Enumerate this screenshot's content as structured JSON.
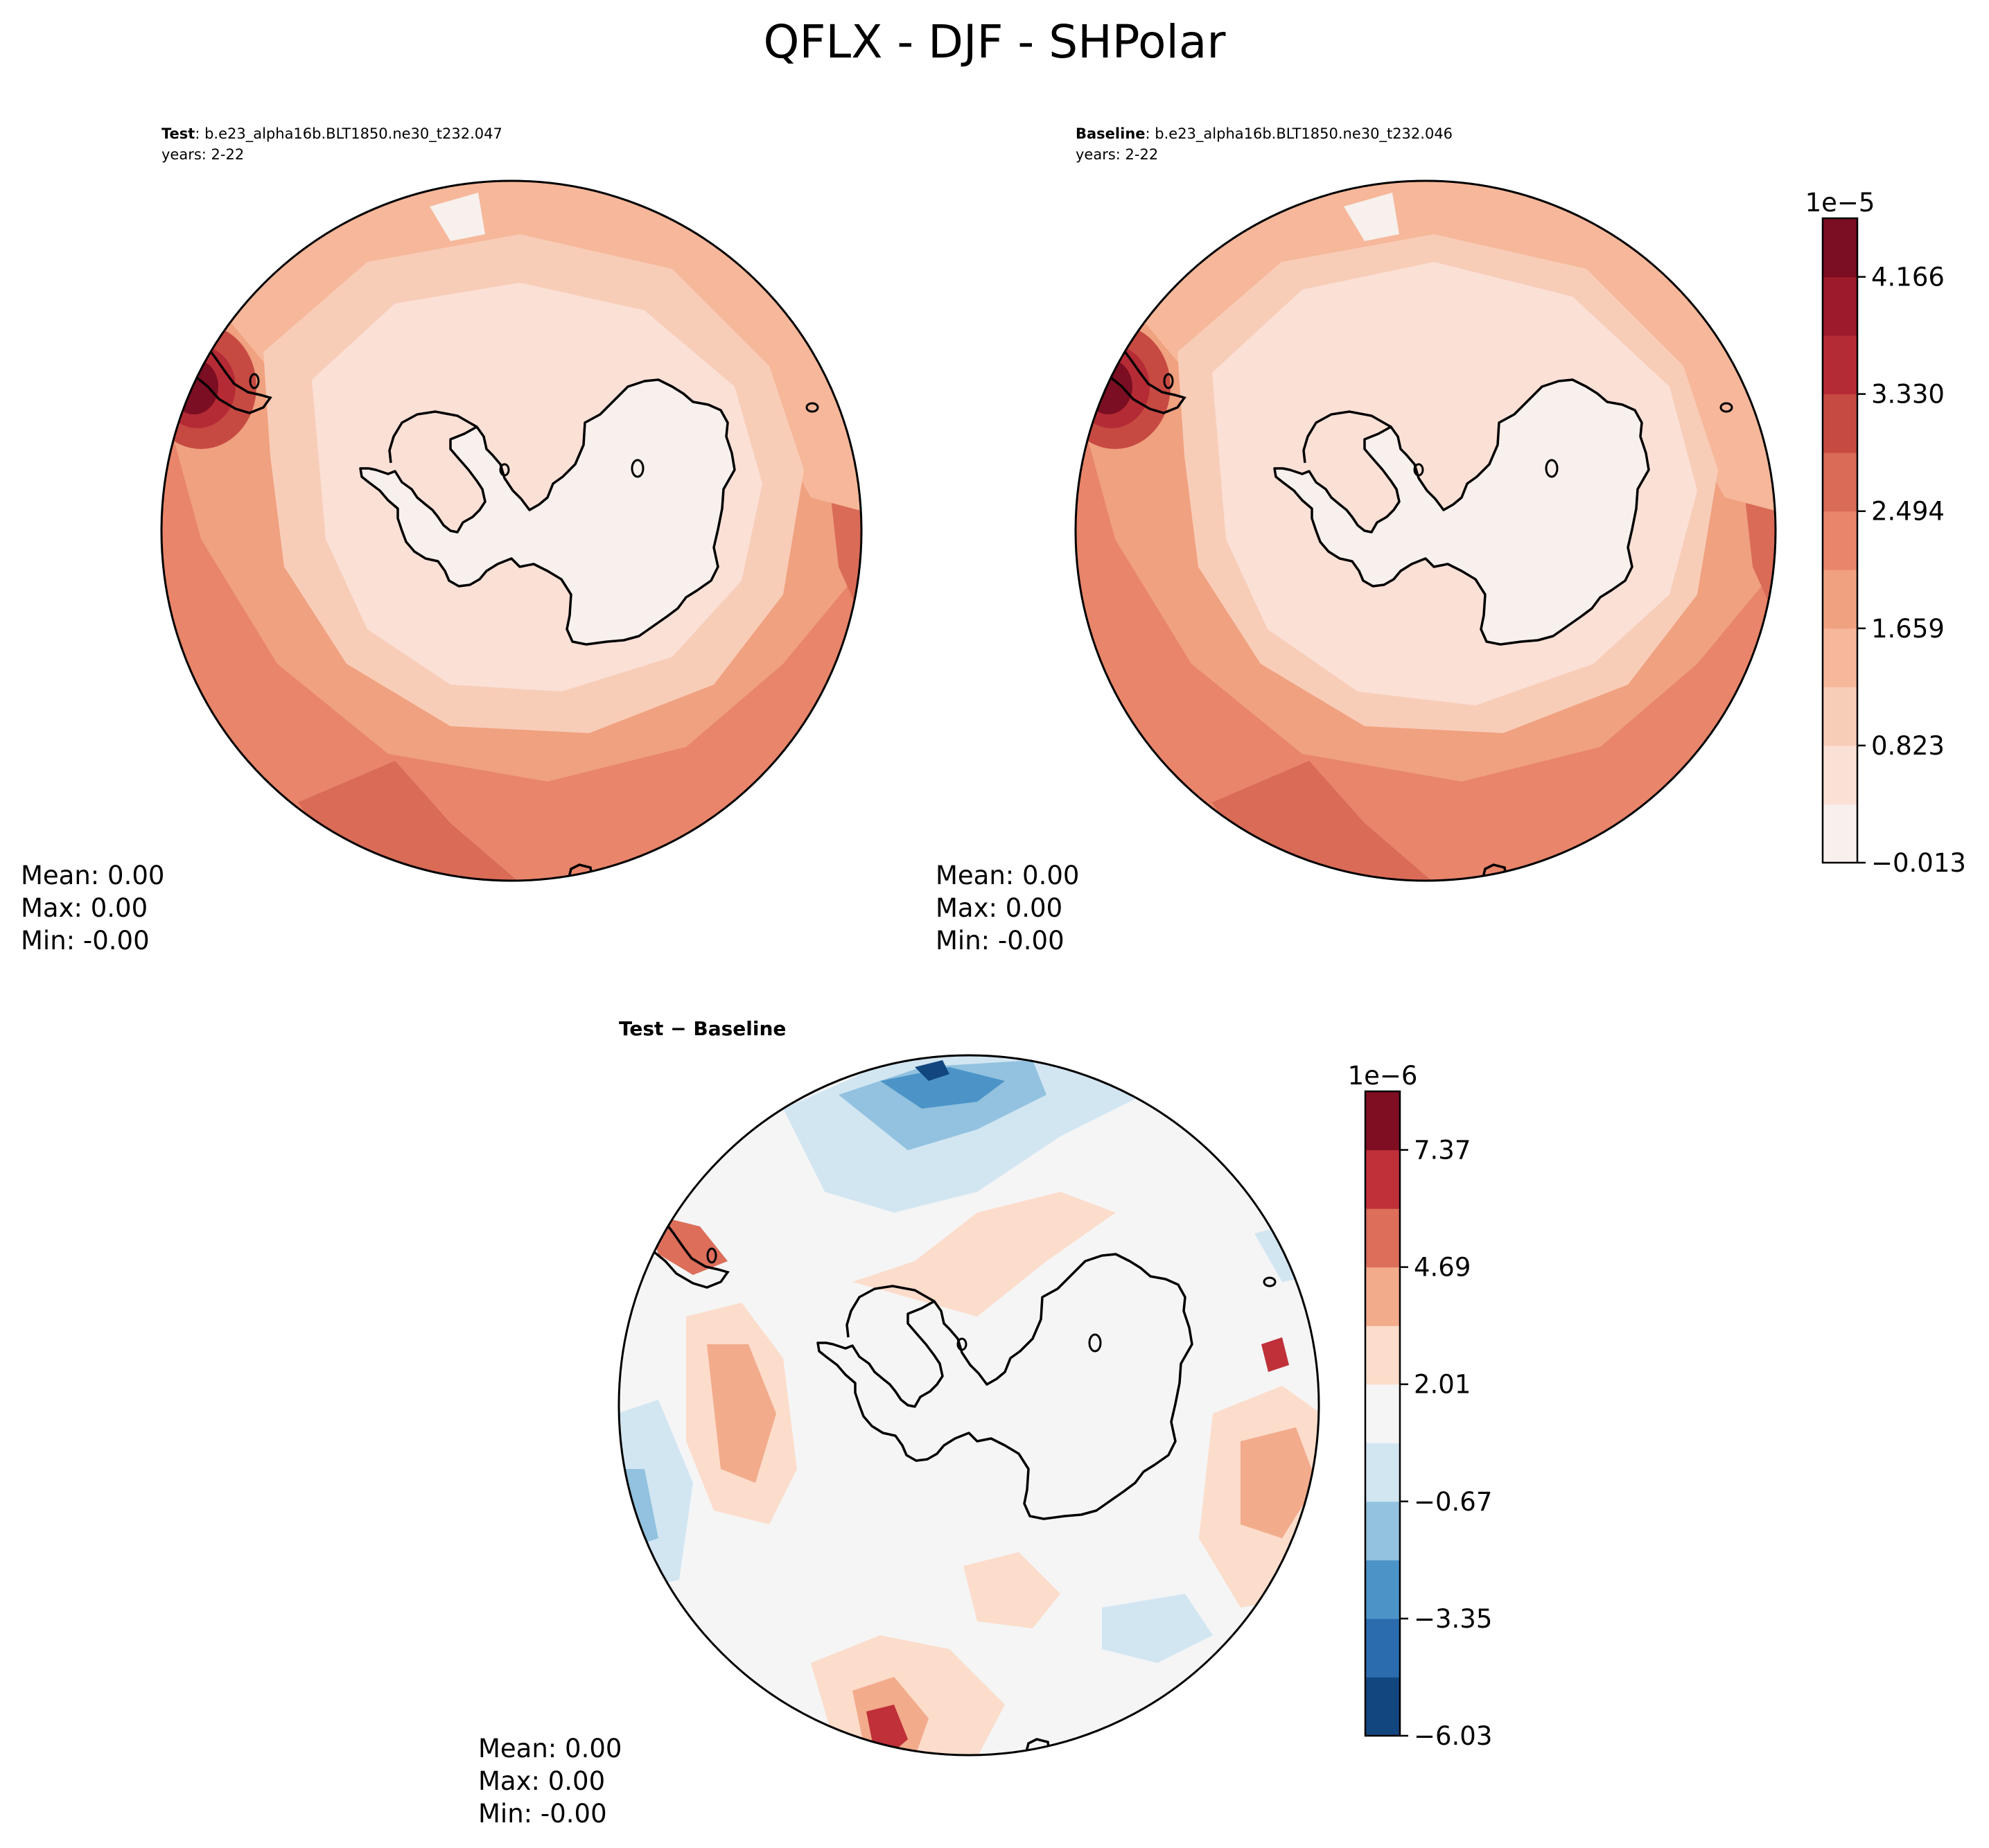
{
  "figure": {
    "title": "QFLX - DJF - SHPolar"
  },
  "panels": [
    {
      "id": "test",
      "title_bold": "Test",
      "title_rest": ": b.e23_alpha16b.BLT1850.ne30_t232.047",
      "subtitle": "years: 2-22",
      "stats": {
        "mean": "Mean:  0.00",
        "max": "Max:  0.00",
        "min": "Min: -0.00"
      }
    },
    {
      "id": "baseline",
      "title_bold": "Baseline",
      "title_rest": ": b.e23_alpha16b.BLT1850.ne30_t232.046",
      "subtitle": "years: 2-22",
      "stats": {
        "mean": "Mean:  0.00",
        "max": "Max:  0.00",
        "min": "Min: -0.00"
      }
    },
    {
      "id": "diff",
      "title_bold": "Test − Baseline",
      "title_rest": "",
      "subtitle": "",
      "stats": {
        "mean": "Mean:  0.00",
        "max": "Max:  0.00",
        "min": "Min: -0.00"
      }
    }
  ],
  "chart_data": [
    {
      "type": "heatmap",
      "title": "Test : b.e23_alpha16b.BLT1850.ne30_t232.047",
      "projection": "south polar stereographic",
      "colormap": "Reds",
      "colorbar_ticks": [
        "−0.013",
        "0.823",
        "1.659",
        "2.494",
        "3.330",
        "4.166"
      ],
      "colorbar_tick_values": [
        -0.013,
        0.823,
        1.659,
        2.494,
        3.33,
        4.166
      ],
      "colorbar_multiplier": "1e−5",
      "colorbar_levels": 11,
      "range": [
        -0.013,
        4.58
      ],
      "stats": {
        "mean": 0.0,
        "max": 0.0,
        "min": -0.0
      }
    },
    {
      "type": "heatmap",
      "title": "Baseline : b.e23_alpha16b.BLT1850.ne30_t232.046",
      "projection": "south polar stereographic",
      "colormap": "Reds",
      "colorbar_ticks": [
        "−0.013",
        "0.823",
        "1.659",
        "2.494",
        "3.330",
        "4.166"
      ],
      "colorbar_tick_values": [
        -0.013,
        0.823,
        1.659,
        2.494,
        3.33,
        4.166
      ],
      "colorbar_multiplier": "1e−5",
      "colorbar_levels": 11,
      "range": [
        -0.013,
        4.58
      ],
      "stats": {
        "mean": 0.0,
        "max": 0.0,
        "min": -0.0
      }
    },
    {
      "type": "heatmap",
      "title": "Test − Baseline",
      "projection": "south polar stereographic",
      "colormap": "RdBu_r",
      "colorbar_ticks": [
        "−6.03",
        "−3.35",
        "−0.67",
        "2.01",
        "4.69",
        "7.37"
      ],
      "colorbar_tick_values": [
        -6.03,
        -3.35,
        -0.67,
        2.01,
        4.69,
        7.37
      ],
      "colorbar_multiplier": "1e−6",
      "colorbar_levels": 11,
      "range": [
        -7.37,
        7.37
      ],
      "stats": {
        "mean": 0.0,
        "max": 0.0,
        "min": -0.0
      }
    }
  ],
  "colors": {
    "reds": [
      "#f7f0ec",
      "#fbe0d6",
      "#f8cdb8",
      "#f6b79a",
      "#f0a17f",
      "#e8856a",
      "#d96b57",
      "#c64a42",
      "#b52b35",
      "#9d1a2b",
      "#7b0e22"
    ],
    "diverging": [
      "#12467f",
      "#2a6cae",
      "#4c94c8",
      "#92c2df",
      "#d2e6f2",
      "#f5f5f5",
      "#fcdccb",
      "#f2ab8b",
      "#dc6e5a",
      "#bf3039",
      "#7f0e22"
    ],
    "land": "#f7f0ec",
    "diff_land": "#f5f5f5"
  }
}
